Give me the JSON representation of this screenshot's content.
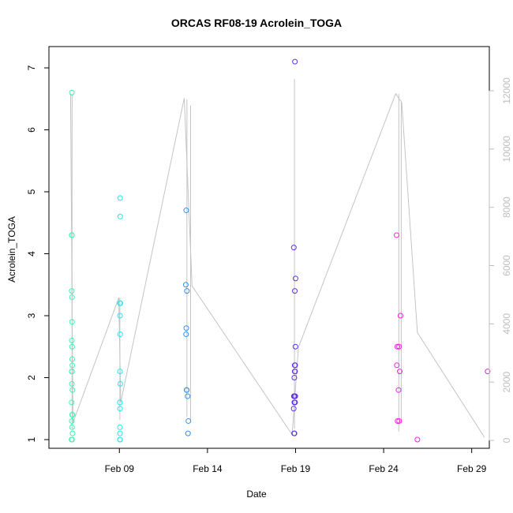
{
  "chart_data": {
    "type": "scatter",
    "title": "ORCAS RF08-19 Acrolein_TOGA",
    "xlabel": "Date",
    "ylabel": "Acrolein_TOGA",
    "x_range_days": [
      "2016-02-05",
      "2016-03-01"
    ],
    "ylim": [
      1,
      7.1
    ],
    "y2lim": [
      0,
      12600
    ],
    "x_ticks": [
      {
        "date": "2016-02-09",
        "label": "Feb 09"
      },
      {
        "date": "2016-02-14",
        "label": "Feb 14"
      },
      {
        "date": "2016-02-19",
        "label": "Feb 19"
      },
      {
        "date": "2016-02-24",
        "label": "Feb 24"
      },
      {
        "date": "2016-02-29",
        "label": "Feb 29"
      }
    ],
    "y_ticks": [
      1,
      2,
      3,
      4,
      5,
      6,
      7
    ],
    "y_tick_labels": [
      "1",
      "2",
      "3",
      "4",
      "5",
      "6",
      "7"
    ],
    "y2_ticks": [
      0,
      2000,
      4000,
      6000,
      8000,
      10000,
      12000
    ],
    "y2_tick_labels": [
      "0",
      "2000",
      "4000",
      "6000",
      "8000",
      "10000",
      "12000"
    ],
    "grid": false,
    "colors": {
      "altitude_line": "#c4c4c4",
      "y2_axis": "#bdbdbd",
      "axis": "#000000",
      "points_by_flight": [
        "#40f0b0",
        "#20e8f0",
        "#3090f0",
        "#6030f0",
        "#f020e0",
        "#f020c0"
      ]
    },
    "series": [
      {
        "color": "#40f0b0",
        "points": [
          [
            "2016-02-06T07:15",
            6.6
          ],
          [
            "2016-02-06T07:05",
            4.3
          ],
          [
            "2016-02-06T07:20",
            4.3
          ],
          [
            "2016-02-06T07:05",
            3.4
          ],
          [
            "2016-02-06T07:30",
            3.3
          ],
          [
            "2016-02-06T07:25",
            2.9
          ],
          [
            "2016-02-06T07:10",
            2.6
          ],
          [
            "2016-02-06T07:30",
            2.5
          ],
          [
            "2016-02-06T07:40",
            2.3
          ],
          [
            "2016-02-06T07:50",
            2.2
          ],
          [
            "2016-02-06T07:10",
            2.1
          ],
          [
            "2016-02-06T07:20",
            2.1
          ],
          [
            "2016-02-06T07:15",
            1.9
          ],
          [
            "2016-02-06T08:00",
            1.8
          ],
          [
            "2016-02-06T07:00",
            1.6
          ],
          [
            "2016-02-06T07:40",
            1.4
          ],
          [
            "2016-02-06T08:05",
            1.4
          ],
          [
            "2016-02-06T07:10",
            1.3
          ],
          [
            "2016-02-06T07:25",
            1.2
          ],
          [
            "2016-02-06T08:10",
            1.1
          ],
          [
            "2016-02-06T06:50",
            1.0
          ],
          [
            "2016-02-06T07:30",
            1.0
          ]
        ]
      },
      {
        "color": "#20e8f0",
        "points": [
          [
            "2016-02-09T01:00",
            4.9
          ],
          [
            "2016-02-09T01:10",
            4.6
          ],
          [
            "2016-02-09T00:40",
            3.2
          ],
          [
            "2016-02-09T00:55",
            3.2
          ],
          [
            "2016-02-09T01:20",
            3.2
          ],
          [
            "2016-02-09T00:50",
            3.0
          ],
          [
            "2016-02-09T01:05",
            2.7
          ],
          [
            "2016-02-09T00:50",
            2.1
          ],
          [
            "2016-02-09T01:10",
            1.9
          ],
          [
            "2016-02-09T00:40",
            1.6
          ],
          [
            "2016-02-09T00:55",
            1.5
          ],
          [
            "2016-02-09T00:45",
            1.2
          ],
          [
            "2016-02-09T00:50",
            1.1
          ],
          [
            "2016-02-09T00:40",
            1.0
          ],
          [
            "2016-02-09T01:00",
            1.0
          ]
        ]
      },
      {
        "color": "#3090f0",
        "points": [
          [
            "2016-02-12T19:00",
            4.7
          ],
          [
            "2016-02-12T18:30",
            3.5
          ],
          [
            "2016-02-12T20:00",
            3.4
          ],
          [
            "2016-02-12T19:10",
            2.8
          ],
          [
            "2016-02-12T18:50",
            2.7
          ],
          [
            "2016-02-12T19:30",
            1.8
          ],
          [
            "2016-02-12T19:50",
            1.8
          ],
          [
            "2016-02-12T21:00",
            1.7
          ],
          [
            "2016-02-12T22:00",
            1.3
          ],
          [
            "2016-02-12T21:30",
            1.1
          ]
        ]
      },
      {
        "color": "#6030f0",
        "points": [
          [
            "2016-02-18T23:10",
            7.1
          ],
          [
            "2016-02-18T21:40",
            4.1
          ],
          [
            "2016-02-19T00:00",
            3.6
          ],
          [
            "2016-02-18T23:00",
            3.4
          ],
          [
            "2016-02-18T23:50",
            2.5
          ],
          [
            "2016-02-18T22:50",
            2.2
          ],
          [
            "2016-02-18T23:30",
            2.2
          ],
          [
            "2016-02-18T22:50",
            2.1
          ],
          [
            "2016-02-18T23:20",
            2.1
          ],
          [
            "2016-02-18T22:20",
            2.0
          ],
          [
            "2016-02-18T21:40",
            1.7
          ],
          [
            "2016-02-18T22:40",
            1.7
          ],
          [
            "2016-02-18T23:40",
            1.7
          ],
          [
            "2016-02-18T22:20",
            1.6
          ],
          [
            "2016-02-18T23:00",
            1.6
          ],
          [
            "2016-02-18T23:20",
            1.6
          ],
          [
            "2016-02-18T21:30",
            1.5
          ],
          [
            "2016-02-18T22:00",
            1.1
          ],
          [
            "2016-02-18T22:30",
            1.1
          ]
        ]
      },
      {
        "color": "#f020e0",
        "points": [
          [
            "2016-02-24T17:40",
            4.3
          ],
          [
            "2016-02-24T23:00",
            3.0
          ],
          [
            "2016-02-24T18:40",
            2.5
          ],
          [
            "2016-02-24T21:00",
            2.5
          ],
          [
            "2016-02-24T18:00",
            2.2
          ],
          [
            "2016-02-24T22:00",
            2.1
          ],
          [
            "2016-02-24T20:20",
            1.8
          ],
          [
            "2016-02-24T19:00",
            1.3
          ],
          [
            "2016-02-24T21:10",
            1.3
          ],
          [
            "2016-02-25T22:00",
            1.0
          ]
        ]
      },
      {
        "color": "#f020c0",
        "points": [
          [
            "2016-02-29T21:40",
            2.1
          ]
        ]
      }
    ],
    "altitude_line_y2": [
      [
        "2016-02-06T05:30",
        11900
      ],
      [
        "2016-02-06T08:40",
        600
      ],
      [
        "2016-02-08T23:10",
        4900
      ],
      [
        "2016-02-09T01:50",
        1300
      ],
      [
        "2016-02-12T16:20",
        11750
      ],
      [
        "2016-02-13T03:00",
        5300
      ],
      [
        "2016-02-18T19:20",
        200
      ],
      [
        "2016-02-19T04:00",
        3200
      ],
      [
        "2016-02-24T16:30",
        11900
      ],
      [
        "2016-02-25T00:40",
        11600
      ],
      [
        "2016-02-25T22:00",
        3700
      ],
      [
        "2016-02-29T17:30",
        100
      ]
    ],
    "altitude_spikes_y2": [
      {
        "at": "2016-02-06T07:30",
        "low": 400,
        "high": 11900
      },
      {
        "at": "2016-02-09T00:40",
        "low": 700,
        "high": 4900
      },
      {
        "at": "2016-02-12T20:00",
        "low": 800,
        "high": 11700
      },
      {
        "at": "2016-02-13T01:00",
        "low": 700,
        "high": 11500
      },
      {
        "at": "2016-02-18T22:30",
        "low": 400,
        "high": 12400
      },
      {
        "at": "2016-02-24T20:40",
        "low": 300,
        "high": 11900
      },
      {
        "at": "2016-02-25T00:00",
        "low": 600,
        "high": 11600
      }
    ]
  }
}
